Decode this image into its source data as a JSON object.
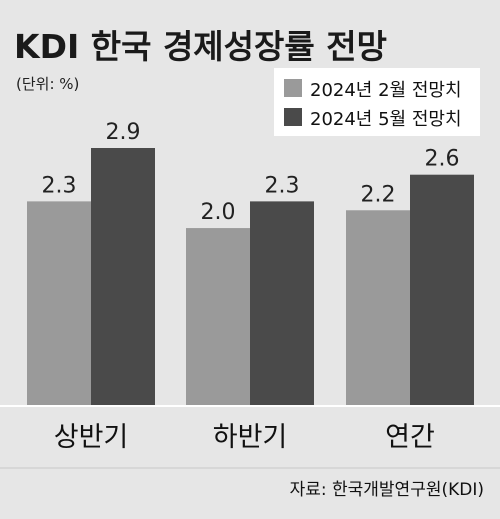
{
  "chart_data": {
    "type": "bar",
    "title": "KDI 한국 경제성장률 전망",
    "unit_label": "(단위: %)",
    "categories": [
      "상반기",
      "하반기",
      "연간"
    ],
    "series": [
      {
        "name": "2024년 2월 전망치",
        "values": [
          2.3,
          2.0,
          2.2
        ],
        "color": "#9a9a9a"
      },
      {
        "name": "2024년 5월 전망치",
        "values": [
          2.9,
          2.3,
          2.6
        ],
        "color": "#4a4a4a"
      }
    ],
    "value_labels": [
      [
        "2.3",
        "2.0",
        "2.2"
      ],
      [
        "2.9",
        "2.3",
        "2.6"
      ]
    ],
    "ylim": [
      0,
      2.9
    ],
    "grid": false,
    "legend_position": "top-right",
    "source": "자료: 한국개발연구원(KDI)"
  }
}
